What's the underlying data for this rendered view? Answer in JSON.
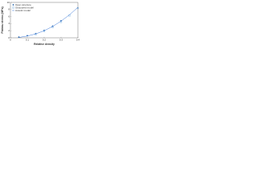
{
  "chart_data": {
    "type": "scatter",
    "x_label": "Relative density",
    "y_label": "Plateau stress (MPa)",
    "x": [
      0.05,
      0.1,
      0.15,
      0.2,
      0.25,
      0.3,
      0.35,
      0.4
    ],
    "series": [
      {
        "name": "Open structure",
        "color": "#1f5fa8",
        "marker": "circle",
        "values": [
          0.2,
          0.6,
          1.2,
          2.1,
          3.3,
          4.8,
          null,
          null
        ]
      },
      {
        "name": "Structured model",
        "color": "#6fa8dc",
        "marker": "square",
        "values": [
          null,
          null,
          1.0,
          1.9,
          3.0,
          4.5,
          6.3,
          8.4
        ]
      },
      {
        "name": "Auxetic model",
        "color": "#3c78d8",
        "marker": "line",
        "values": [
          0.1,
          0.5,
          1.1,
          2.0,
          3.2,
          4.7,
          6.5,
          8.6
        ]
      }
    ],
    "xlim": [
      0,
      0.4
    ],
    "xticks": [
      0,
      0.1,
      0.2,
      0.3,
      0.4
    ],
    "ylim": [
      0,
      10
    ],
    "yticks": [
      0,
      2,
      4,
      6,
      8,
      10
    ],
    "grid": false,
    "legend": "upper left"
  }
}
